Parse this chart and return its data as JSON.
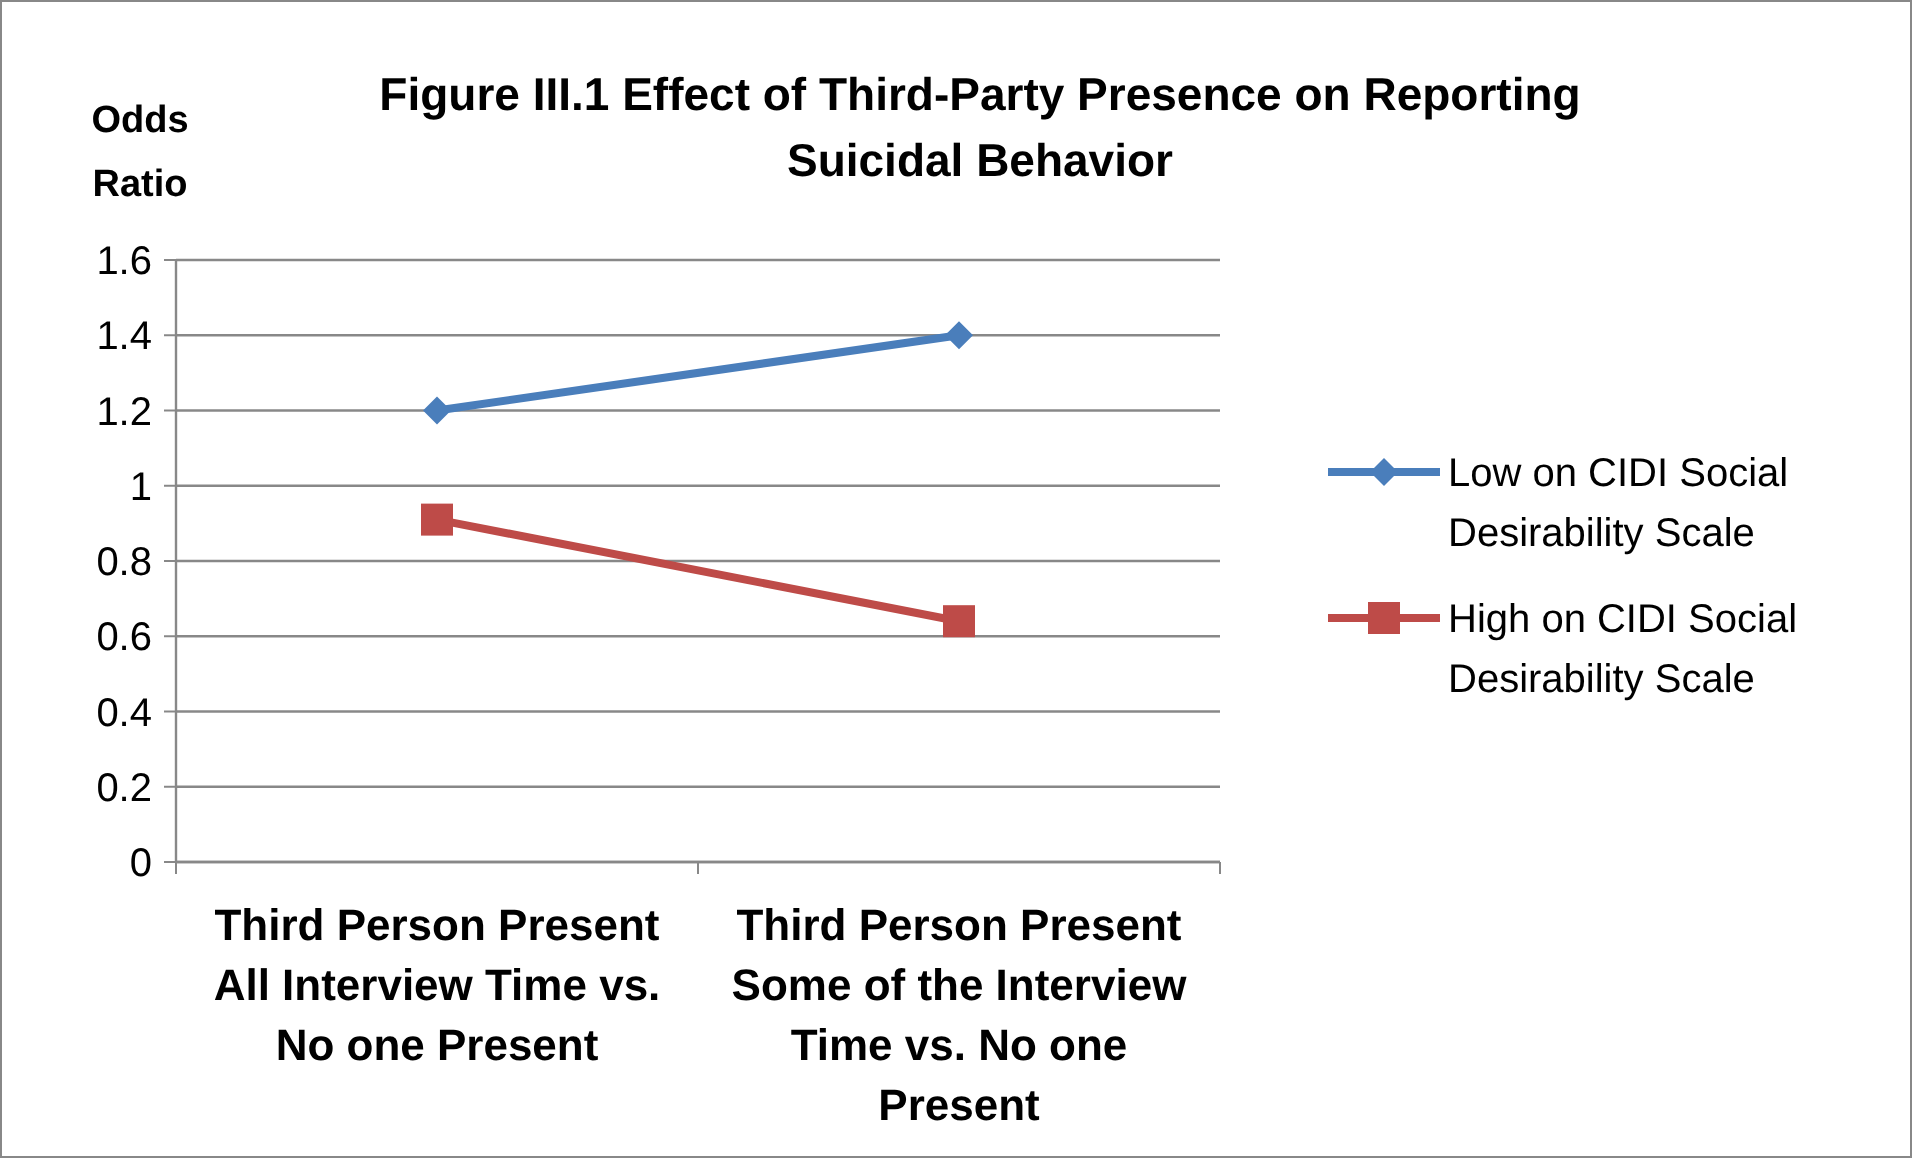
{
  "chart_data": {
    "type": "line",
    "title": "Figure III.1 Effect of Third-Party Presence on Reporting Suicidal Behavior",
    "ylabel": "Odds Ratio",
    "categories": [
      "Third Person Present All Interview Time vs. No one Present",
      "Third Person Present Some of the Interview Time vs. No one Present"
    ],
    "series": [
      {
        "name": "Low on CIDI Social Desirability Scale",
        "color": "#4a7ebb",
        "values": [
          1.2,
          1.4
        ],
        "marker": "diamond"
      },
      {
        "name": "High on CIDI Social Desirability Scale",
        "color": "#be4b48",
        "values": [
          0.91,
          0.64
        ],
        "marker": "square"
      }
    ],
    "ylim": [
      0,
      1.6
    ],
    "yticks": [
      0,
      0.2,
      0.4,
      0.6,
      0.8,
      1,
      1.2,
      1.4,
      1.6
    ],
    "grid": "y",
    "legend": "right",
    "line_style": "solid"
  }
}
